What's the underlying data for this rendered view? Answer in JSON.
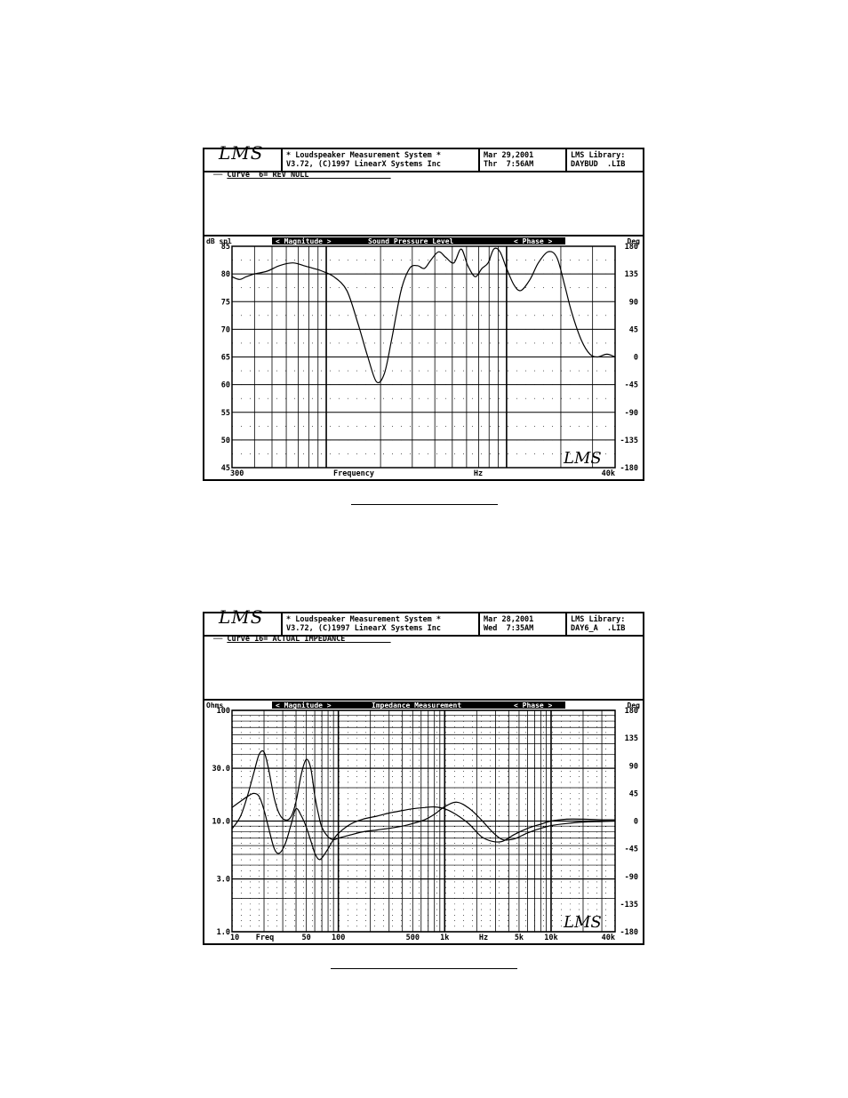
{
  "panels": [
    {
      "logo": "LMS",
      "title_line1": "* Loudspeaker Measurement System *",
      "title_line2": "V3.72, (C)1997 LinearX Systems Inc",
      "date_line1": "Mar 29,2001",
      "date_line2": "Thr  7:56AM",
      "lib_line1": "LMS Library:",
      "lib_line2": "DAYBUD  .LIB",
      "curve_label": "Curve  6= REV NULL",
      "left_unit": "dB spl",
      "magnitude_label": "< Magnitude >",
      "measurement_label": "Sound Pressure Level",
      "phase_label": "< Phase >",
      "right_unit": "Deg",
      "watermark": "LMS"
    },
    {
      "logo": "LMS",
      "title_line1": "* Loudspeaker Measurement System *",
      "title_line2": "V3.72, (C)1997 LinearX Systems Inc",
      "date_line1": "Mar 28,2001",
      "date_line2": "Wed  7:35AM",
      "lib_line1": "LMS Library:",
      "lib_line2": "DAY6_A  .LIB",
      "curve_label": "Curve 16= ACTUAL IMPEDANCE",
      "left_unit": "Ohms",
      "magnitude_label": "< Magnitude >",
      "measurement_label": "Impedance Measurement",
      "phase_label": "< Phase >",
      "right_unit": "Deg",
      "watermark": "LMS"
    }
  ],
  "chart_data": [
    {
      "type": "line",
      "title": "Sound Pressure Level",
      "xscale": "log",
      "xlim": [
        300,
        40000
      ],
      "ylim": [
        45,
        85
      ],
      "y2lim": [
        -180,
        180
      ],
      "xlabel": "Frequency",
      "xunit": "Hz",
      "x_tick_labels": [
        "300",
        "40k"
      ],
      "y_ticks": [
        "85",
        "80",
        "75",
        "70",
        "65",
        "60",
        "55",
        "50",
        "45"
      ],
      "y2_ticks": [
        "180",
        "135",
        "90",
        "45",
        "0",
        "-45",
        "-90",
        "-135",
        "-180"
      ],
      "series": [
        {
          "x": [
            300,
            330,
            360,
            400,
            470,
            550,
            650,
            750,
            850,
            950,
            1100,
            1300,
            1500,
            1700,
            1900,
            2100,
            2300,
            2600,
            2900,
            3200,
            3500,
            3800,
            4200,
            4600,
            5100,
            5600,
            6100,
            6700,
            7300,
            7900,
            8500,
            9200,
            10000,
            11000,
            12000,
            13500,
            15000,
            17000,
            19000,
            21000,
            23000,
            26000,
            29000,
            32000,
            36000,
            40000
          ],
          "y": [
            79.5,
            79,
            79.5,
            80,
            80.5,
            81.5,
            82,
            81.5,
            81,
            80.5,
            79.5,
            77,
            71,
            65,
            60.5,
            62,
            68,
            77,
            81,
            81.5,
            81,
            82.5,
            84,
            83,
            82,
            84.5,
            81.5,
            79.5,
            81,
            82,
            84.5,
            84,
            81,
            78,
            77,
            79,
            82,
            84,
            83,
            78,
            73,
            68,
            65.5,
            65,
            65.5,
            65
          ]
        }
      ]
    },
    {
      "type": "line",
      "title": "Impedance Measurement",
      "xscale": "log",
      "yscale": "log",
      "xlim": [
        10,
        40000
      ],
      "ylim": [
        1,
        100
      ],
      "y2lim": [
        -180,
        180
      ],
      "xlabel": "Freq",
      "xunit": "Hz",
      "x_tick_labels": [
        "10",
        "50",
        "100",
        "500",
        "1k",
        "5k",
        "10k",
        "40k"
      ],
      "y_ticks": [
        "100",
        "30.0",
        "10.0",
        "3.0",
        "1.0"
      ],
      "y2_ticks": [
        "180",
        "135",
        "90",
        "45",
        "0",
        "-45",
        "-90",
        "-135",
        "-180"
      ],
      "series": [
        {
          "x": [
            10,
            12,
            14,
            16,
            18,
            20,
            22,
            25,
            28,
            32,
            36,
            40,
            45,
            50,
            55,
            60,
            65,
            70,
            80,
            90,
            100,
            130,
            170,
            230,
            300,
            400,
            500,
            650,
            800,
            1000,
            1300,
            1700,
            2200,
            2800,
            3500,
            4500,
            6000,
            8000,
            10000,
            14000,
            20000,
            30000,
            40000
          ],
          "y": [
            8.5,
            11,
            17,
            27,
            40,
            42,
            30,
            16,
            11.5,
            10.2,
            11,
            15,
            27,
            36,
            30,
            17,
            11.5,
            8.8,
            7.2,
            6.8,
            7,
            7.5,
            8,
            8.3,
            8.6,
            9,
            9.5,
            10.3,
            11.5,
            13.5,
            14.8,
            13,
            10.3,
            8,
            6.8,
            6.9,
            7.8,
            8.6,
            9.1,
            9.5,
            9.8,
            9.9,
            10
          ]
        },
        {
          "x": [
            10,
            12,
            14,
            16,
            18,
            20,
            22,
            25,
            28,
            32,
            36,
            40,
            45,
            50,
            55,
            60,
            65,
            70,
            80,
            90,
            100,
            130,
            170,
            230,
            300,
            400,
            500,
            650,
            800,
            1000,
            1300,
            1700,
            2200,
            2800,
            3500,
            4500,
            6000,
            8000,
            10000,
            14000,
            20000,
            30000,
            40000
          ],
          "y": [
            22,
            32,
            40,
            45,
            40,
            18,
            -10,
            -45,
            -52,
            -35,
            -5,
            20,
            8,
            -10,
            -32,
            -52,
            -62,
            -60,
            -45,
            -30,
            -20,
            -5,
            3,
            8,
            13,
            17,
            20,
            22,
            23,
            20,
            10,
            -5,
            -25,
            -33,
            -33,
            -22,
            -12,
            -5,
            0,
            3,
            3,
            2,
            2
          ]
        }
      ]
    }
  ]
}
